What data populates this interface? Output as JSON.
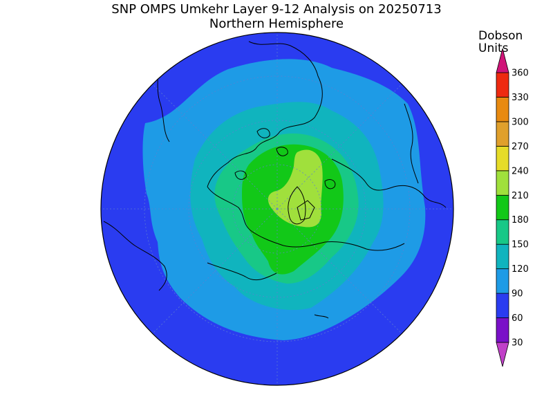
{
  "title": "SNP OMPS Umkehr Layer 9-12 Analysis on 20250713",
  "subtitle": "Northern Hemisphere",
  "colorbar": {
    "units_line1": "Dobson",
    "units_line2": "Units",
    "levels": [
      {
        "label": "30",
        "color": "#7a10c8"
      },
      {
        "label": "60",
        "color": "#2a3cf0"
      },
      {
        "label": "90",
        "color": "#1e9be6"
      },
      {
        "label": "120",
        "color": "#10b4be"
      },
      {
        "label": "150",
        "color": "#18c887"
      },
      {
        "label": "180",
        "color": "#12c818"
      },
      {
        "label": "210",
        "color": "#a0e03c"
      },
      {
        "label": "240",
        "color": "#e6dc28"
      },
      {
        "label": "270",
        "color": "#e0a02c"
      },
      {
        "label": "300",
        "color": "#e88a10"
      },
      {
        "label": "330",
        "color": "#ee2a10"
      },
      {
        "label": "360",
        "color": "#d81478"
      }
    ],
    "below_color": "#c040c8",
    "above_color": "#d01478"
  },
  "map": {
    "projection": "north polar stereographic",
    "hemisphere": "Northern Hemisphere",
    "outer_color": "#2a3cf0",
    "graticule": true
  }
}
